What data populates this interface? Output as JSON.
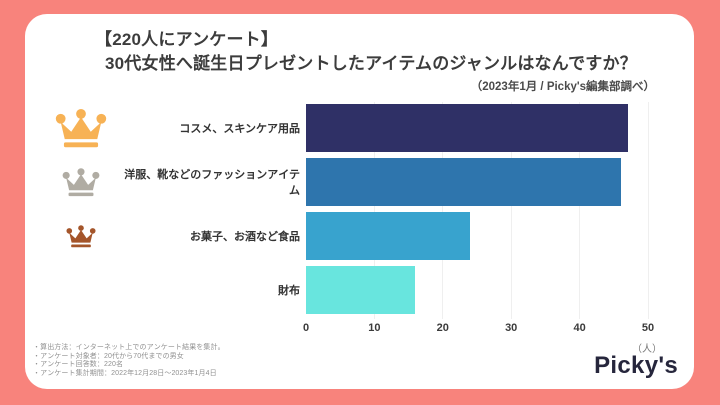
{
  "title": {
    "line1": "【220人にアンケート】",
    "line2": "30代女性へ誕生日プレゼントしたアイテムのジャンルはなんですか？"
  },
  "subtitle": "（2023年1月 / Picky's編集部調べ）",
  "chart_data": {
    "type": "bar",
    "orientation": "horizontal",
    "title": "30代女性へ誕生日プレゼントしたアイテムのジャンル",
    "categories": [
      "コスメ、スキンケア用品",
      "洋服、靴などのファッションアイテム",
      "お菓子、お酒など食品",
      "財布"
    ],
    "values": [
      47,
      46,
      24,
      16
    ],
    "bar_colors": [
      "#2F3066",
      "#2E75AD",
      "#38A3CE",
      "#68E5DE"
    ],
    "xlim": [
      0,
      50
    ],
    "xticks": [
      0,
      10,
      20,
      30,
      40,
      50
    ],
    "xlabel": "（人）",
    "grid": true,
    "ranks": [
      {
        "medal": "gold",
        "color": "#F7B255"
      },
      {
        "medal": "silver",
        "color": "#B0ACA3"
      },
      {
        "medal": "bronze",
        "color": "#A4552A"
      }
    ]
  },
  "axis": {
    "unit_label": "（人）"
  },
  "footnotes": [
    "・算出方法：インターネット上でのアンケート結果を集計。",
    "・アンケート対象者：20代から70代までの男女",
    "・アンケート回答数：220名",
    "・アンケート集計期間：2022年12月28日～2023年1月4日"
  ],
  "logo": "Picky's",
  "colors": {
    "frame": "#F8837C",
    "card": "#FFFFFF",
    "title_text": "#3C3C3C",
    "footnote_text": "#909090",
    "logo_text": "#26263C"
  }
}
